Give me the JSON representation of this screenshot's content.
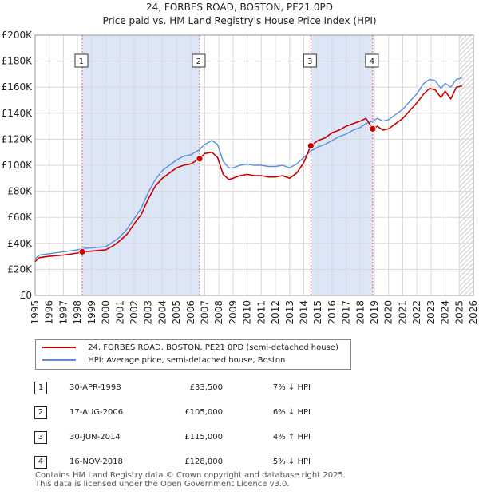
{
  "header": {
    "title_line1": "24, FORBES ROAD, BOSTON, PE21 0PD",
    "title_line2": "Price paid vs. HM Land Registry's House Price Index (HPI)"
  },
  "chart_data": {
    "type": "line",
    "x_range": [
      1995.0,
      2026.0
    ],
    "ylim": [
      0,
      200000
    ],
    "y_ticks": [
      0,
      20000,
      40000,
      60000,
      80000,
      100000,
      120000,
      140000,
      160000,
      180000,
      200000
    ],
    "y_tick_labels": [
      "£0",
      "£20K",
      "£40K",
      "£60K",
      "£80K",
      "£100K",
      "£120K",
      "£140K",
      "£160K",
      "£180K",
      "£200K"
    ],
    "x_ticks": [
      1995,
      1996,
      1997,
      1998,
      1999,
      2000,
      2001,
      2002,
      2003,
      2004,
      2005,
      2006,
      2007,
      2008,
      2009,
      2010,
      2011,
      2012,
      2013,
      2014,
      2015,
      2016,
      2017,
      2018,
      2019,
      2020,
      2021,
      2022,
      2023,
      2024,
      2025,
      2026
    ],
    "x_tick_labels": [
      "1995",
      "1996",
      "1997",
      "1998",
      "1999",
      "2000",
      "2001",
      "2002",
      "2003",
      "2004",
      "2005",
      "2006",
      "2007",
      "2008",
      "2009",
      "2010",
      "2011",
      "2012",
      "2013",
      "2014",
      "2015",
      "2016",
      "2017",
      "2018",
      "2019",
      "2020",
      "2021",
      "2022",
      "2023",
      "2024",
      "2025",
      "2026"
    ],
    "series": [
      {
        "name": "24, FORBES ROAD, BOSTON, PE21 0PD (semi-detached house)",
        "color": "#cc0000",
        "x": [
          1995.0,
          1995.3,
          1996.0,
          1997.0,
          1998.0,
          1998.33,
          1999.0,
          2000.0,
          2000.5,
          2001.0,
          2001.5,
          2002.0,
          2002.5,
          2003.0,
          2003.5,
          2004.0,
          2004.5,
          2005.0,
          2005.5,
          2006.0,
          2006.63,
          2007.0,
          2007.5,
          2007.9,
          2008.3,
          2008.7,
          2009.0,
          2009.5,
          2010.0,
          2010.5,
          2011.0,
          2011.5,
          2012.0,
          2012.5,
          2013.0,
          2013.5,
          2014.0,
          2014.5,
          2015.0,
          2015.5,
          2016.0,
          2016.5,
          2017.0,
          2017.5,
          2018.0,
          2018.4,
          2018.88,
          2019.2,
          2019.6,
          2020.0,
          2020.5,
          2021.0,
          2021.5,
          2022.0,
          2022.5,
          2022.9,
          2023.3,
          2023.7,
          2024.0,
          2024.4,
          2024.8,
          2025.2
        ],
        "y": [
          26000,
          29000,
          30000,
          31000,
          32500,
          33500,
          34000,
          35000,
          38000,
          42000,
          47000,
          55000,
          62000,
          74000,
          84000,
          90000,
          94000,
          98000,
          100000,
          101000,
          105000,
          109000,
          110000,
          106000,
          93000,
          89000,
          90000,
          92000,
          93000,
          92000,
          92000,
          91000,
          91000,
          92000,
          90000,
          94000,
          102000,
          115000,
          119000,
          121000,
          125000,
          127000,
          130000,
          132000,
          134000,
          136000,
          128000,
          130000,
          127000,
          128000,
          132000,
          136000,
          142000,
          148000,
          155000,
          159000,
          158000,
          152000,
          157000,
          151000,
          160000,
          161000
        ]
      },
      {
        "name": "HPI: Average price, semi-detached house, Boston",
        "color": "#5b8fd9",
        "x": [
          1995.0,
          1995.3,
          1996.0,
          1997.0,
          1998.0,
          1998.33,
          1999.0,
          2000.0,
          2000.5,
          2001.0,
          2001.5,
          2002.0,
          2002.5,
          2003.0,
          2003.5,
          2004.0,
          2004.5,
          2005.0,
          2005.5,
          2006.0,
          2006.63,
          2007.0,
          2007.5,
          2007.9,
          2008.3,
          2008.7,
          2009.0,
          2009.5,
          2010.0,
          2010.5,
          2011.0,
          2011.5,
          2012.0,
          2012.5,
          2013.0,
          2013.5,
          2014.0,
          2014.5,
          2015.0,
          2015.5,
          2016.0,
          2016.5,
          2017.0,
          2017.5,
          2018.0,
          2018.4,
          2018.88,
          2019.2,
          2019.6,
          2020.0,
          2020.5,
          2021.0,
          2021.5,
          2022.0,
          2022.5,
          2022.9,
          2023.3,
          2023.7,
          2024.0,
          2024.4,
          2024.8,
          2025.2
        ],
        "y": [
          28000,
          31000,
          32000,
          33500,
          35000,
          36000,
          36500,
          37500,
          41000,
          45000,
          51000,
          59000,
          67000,
          79000,
          89000,
          96000,
          100000,
          104000,
          107000,
          108000,
          112000,
          116000,
          119000,
          116000,
          103000,
          98000,
          98000,
          100000,
          101000,
          100000,
          100000,
          99000,
          99000,
          100000,
          98000,
          101000,
          106000,
          111000,
          114000,
          116000,
          119000,
          122000,
          124000,
          127000,
          129000,
          132000,
          134000,
          136000,
          134000,
          135000,
          139000,
          143000,
          149000,
          155000,
          163000,
          166000,
          165000,
          159000,
          163000,
          160000,
          166000,
          167000
        ]
      }
    ],
    "sale_markers": [
      {
        "label": "1",
        "x": 1998.33,
        "y": 33500
      },
      {
        "label": "2",
        "x": 2006.63,
        "y": 105000
      },
      {
        "label": "3",
        "x": 2014.5,
        "y": 115000
      },
      {
        "label": "4",
        "x": 2018.88,
        "y": 128000
      }
    ],
    "shaded_ranges": [
      [
        1998.33,
        2006.63
      ],
      [
        2014.5,
        2018.88
      ]
    ],
    "forecast_hatch_from": 2025.0
  },
  "legend": {
    "items": [
      {
        "label": "24, FORBES ROAD, BOSTON, PE21 0PD (semi-detached house)",
        "color": "#cc0000"
      },
      {
        "label": "HPI: Average price, semi-detached house, Boston",
        "color": "#5b8fd9"
      }
    ]
  },
  "sales": [
    {
      "num": "1",
      "date": "30-APR-1998",
      "price": "£33,500",
      "hpi": "7% ↓ HPI"
    },
    {
      "num": "2",
      "date": "17-AUG-2006",
      "price": "£105,000",
      "hpi": "6% ↓ HPI"
    },
    {
      "num": "3",
      "date": "30-JUN-2014",
      "price": "£115,000",
      "hpi": "4% ↑ HPI"
    },
    {
      "num": "4",
      "date": "16-NOV-2018",
      "price": "£128,000",
      "hpi": "5% ↓ HPI"
    }
  ],
  "footer": {
    "line1": "Contains HM Land Registry data © Crown copyright and database right 2025.",
    "line2": "This data is licensed under the Open Government Licence v3.0."
  }
}
